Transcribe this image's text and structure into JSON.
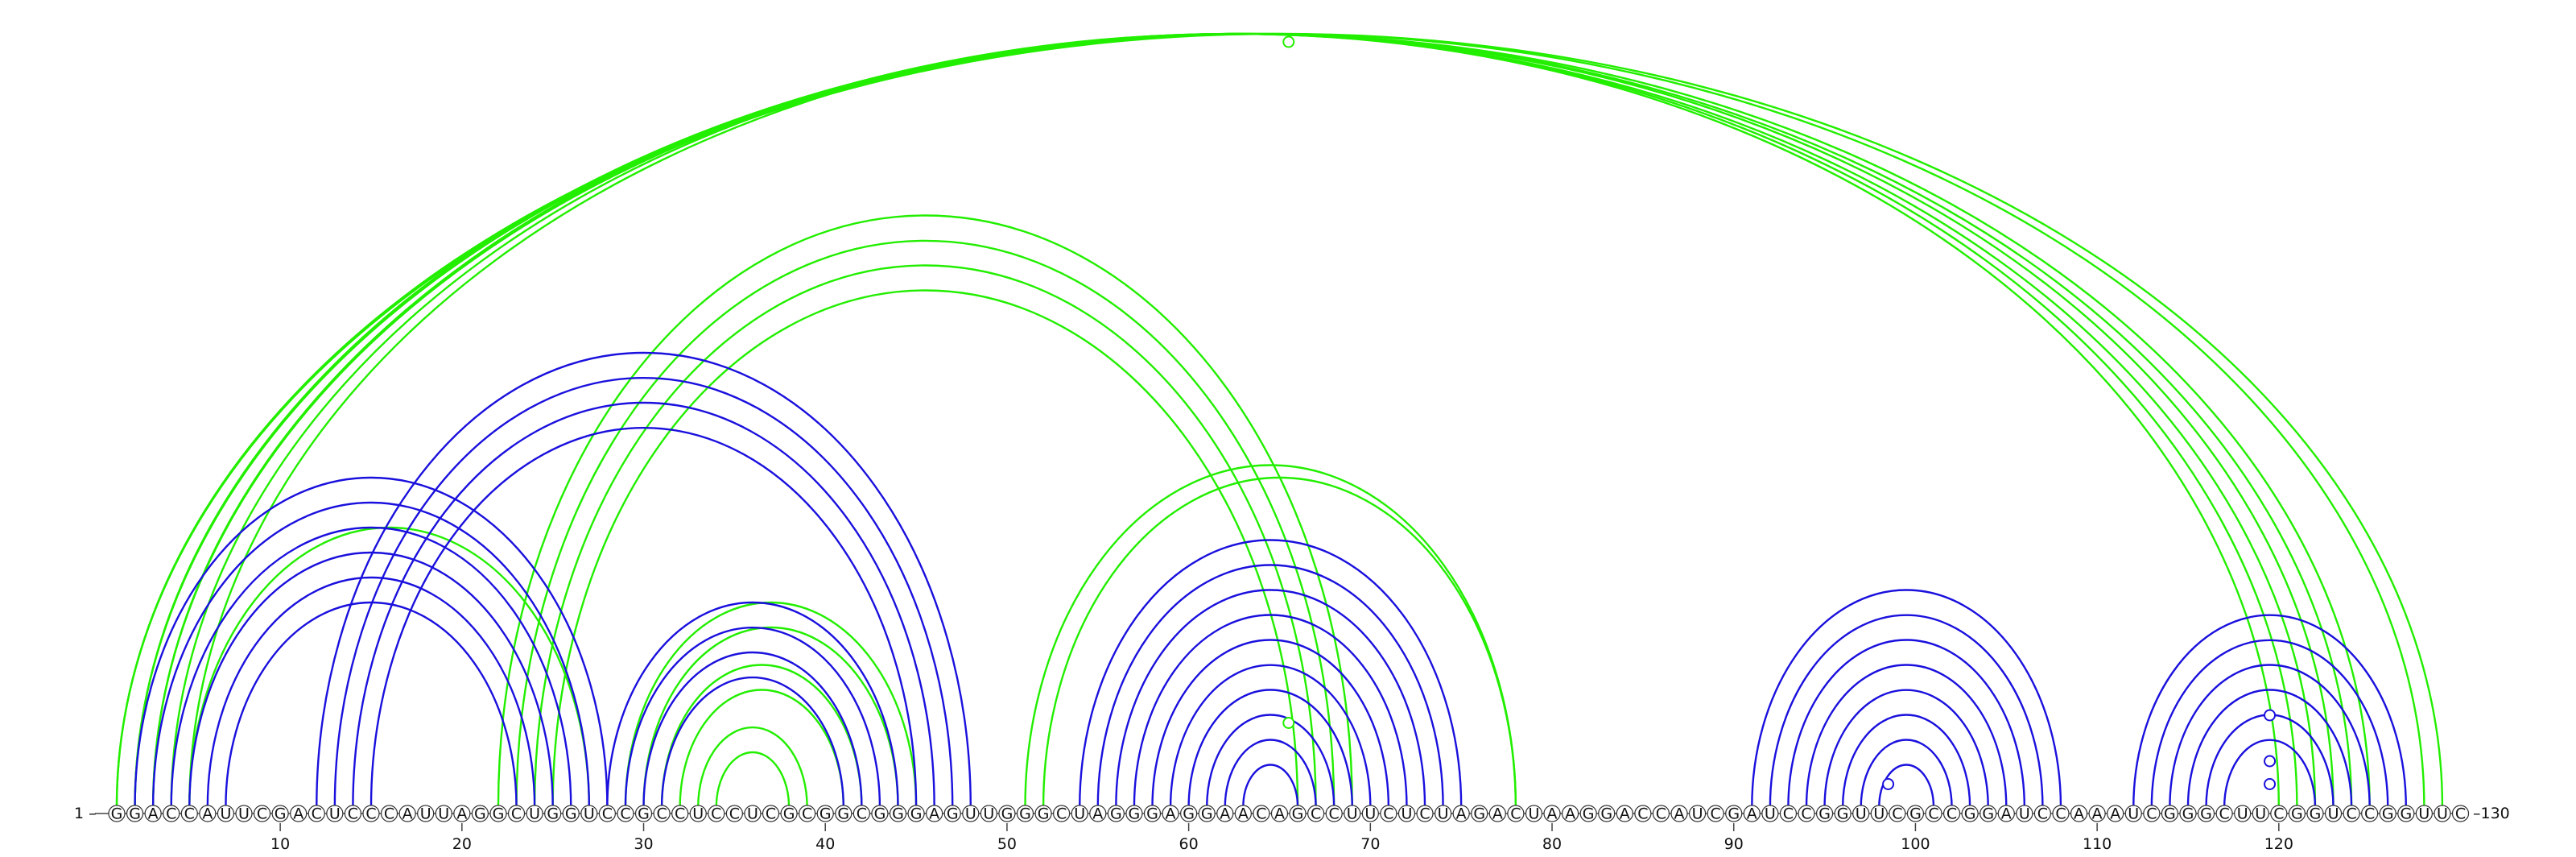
{
  "sequence": "GGACCAUUCGACUCCCAUUAGGCUGGUCCGCCUCCUCGCGGCGGGAGUUGGGCUAGGGAGGAACAGCCUUCUCUAGACUAAGGACCAUCGAUCCGGUUCGCCGGAUCCAAAUCGGGCUUCGGUCCGGUUC",
  "start_label": "1",
  "end_label": "130",
  "ticks": [
    10,
    20,
    30,
    40,
    50,
    60,
    70,
    80,
    90,
    100,
    110,
    120
  ],
  "colors": {
    "green": "#22ee00",
    "blue": "#1a10dd",
    "nucleotide_stroke": "#333333",
    "nucleotide_fill": "#ffffff",
    "text": "#111111"
  },
  "arcs": [
    {
      "i": 1,
      "j": 129,
      "color": "green"
    },
    {
      "i": 1,
      "j": 128,
      "color": "green"
    },
    {
      "i": 2,
      "j": 125,
      "color": "green"
    },
    {
      "i": 2,
      "j": 124,
      "color": "green"
    },
    {
      "i": 3,
      "j": 123,
      "color": "green"
    },
    {
      "i": 3,
      "j": 122,
      "color": "green"
    },
    {
      "i": 4,
      "j": 121,
      "color": "green"
    },
    {
      "i": 5,
      "j": 120,
      "color": "green"
    },
    {
      "i": 22,
      "j": 69,
      "color": "green"
    },
    {
      "i": 23,
      "j": 68,
      "color": "green"
    },
    {
      "i": 24,
      "j": 67,
      "color": "green"
    },
    {
      "i": 25,
      "j": 66,
      "color": "green"
    },
    {
      "i": 5,
      "j": 27,
      "color": "green"
    },
    {
      "i": 29,
      "j": 45,
      "color": "green"
    },
    {
      "i": 30,
      "j": 44,
      "color": "green"
    },
    {
      "i": 31,
      "j": 42,
      "color": "green"
    },
    {
      "i": 32,
      "j": 41,
      "color": "green"
    },
    {
      "i": 33,
      "j": 39,
      "color": "green"
    },
    {
      "i": 34,
      "j": 38,
      "color": "green"
    },
    {
      "i": 51,
      "j": 78,
      "color": "green"
    },
    {
      "i": 52,
      "j": 78,
      "color": "green"
    },
    {
      "i": 2,
      "j": 28,
      "color": "blue"
    },
    {
      "i": 3,
      "j": 27,
      "color": "blue"
    },
    {
      "i": 4,
      "j": 26,
      "color": "blue"
    },
    {
      "i": 5,
      "j": 25,
      "color": "blue"
    },
    {
      "i": 6,
      "j": 24,
      "color": "blue"
    },
    {
      "i": 7,
      "j": 23,
      "color": "blue"
    },
    {
      "i": 12,
      "j": 48,
      "color": "blue"
    },
    {
      "i": 13,
      "j": 47,
      "color": "blue"
    },
    {
      "i": 14,
      "j": 46,
      "color": "blue"
    },
    {
      "i": 15,
      "j": 45,
      "color": "blue"
    },
    {
      "i": 28,
      "j": 44,
      "color": "blue"
    },
    {
      "i": 29,
      "j": 43,
      "color": "blue"
    },
    {
      "i": 30,
      "j": 42,
      "color": "blue"
    },
    {
      "i": 31,
      "j": 41,
      "color": "blue"
    },
    {
      "i": 54,
      "j": 75,
      "color": "blue"
    },
    {
      "i": 55,
      "j": 74,
      "color": "blue"
    },
    {
      "i": 56,
      "j": 73,
      "color": "blue"
    },
    {
      "i": 57,
      "j": 72,
      "color": "blue"
    },
    {
      "i": 58,
      "j": 71,
      "color": "blue"
    },
    {
      "i": 59,
      "j": 70,
      "color": "blue"
    },
    {
      "i": 60,
      "j": 69,
      "color": "blue"
    },
    {
      "i": 61,
      "j": 68,
      "color": "blue"
    },
    {
      "i": 62,
      "j": 67,
      "color": "blue"
    },
    {
      "i": 63,
      "j": 66,
      "color": "blue"
    },
    {
      "i": 91,
      "j": 108,
      "color": "blue"
    },
    {
      "i": 92,
      "j": 107,
      "color": "blue"
    },
    {
      "i": 93,
      "j": 106,
      "color": "blue"
    },
    {
      "i": 94,
      "j": 105,
      "color": "blue"
    },
    {
      "i": 95,
      "j": 104,
      "color": "blue"
    },
    {
      "i": 96,
      "j": 103,
      "color": "blue"
    },
    {
      "i": 97,
      "j": 102,
      "color": "blue"
    },
    {
      "i": 98,
      "j": 101,
      "color": "blue"
    },
    {
      "i": 112,
      "j": 127,
      "color": "blue"
    },
    {
      "i": 113,
      "j": 126,
      "color": "blue"
    },
    {
      "i": 114,
      "j": 125,
      "color": "blue"
    },
    {
      "i": 115,
      "j": 124,
      "color": "blue"
    },
    {
      "i": 116,
      "j": 123,
      "color": "blue"
    },
    {
      "i": 117,
      "j": 122,
      "color": "blue"
    }
  ],
  "markers": [
    {
      "pos": 65.5,
      "height": 1.0,
      "color": "green"
    },
    {
      "pos": 65.5,
      "height": 0.11,
      "color": "green"
    },
    {
      "pos": 98.5,
      "height": 0.03,
      "color": "blue"
    },
    {
      "pos": 119.5,
      "height": 0.12,
      "color": "blue"
    },
    {
      "pos": 119.5,
      "height": 0.06,
      "color": "blue"
    },
    {
      "pos": 119.5,
      "height": 0.03,
      "color": "blue"
    }
  ]
}
